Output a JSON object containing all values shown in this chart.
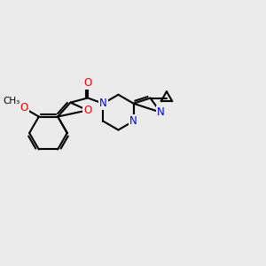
{
  "background_color": "#ebebeb",
  "bond_color": "#000000",
  "oxygen_color": "#ff0000",
  "nitrogen_color": "#0000ff",
  "bond_lw": 1.5,
  "figsize": [
    3.0,
    3.0
  ],
  "dpi": 100,
  "xlim": [
    -2.8,
    5.0
  ],
  "ylim": [
    -2.0,
    2.2
  ]
}
